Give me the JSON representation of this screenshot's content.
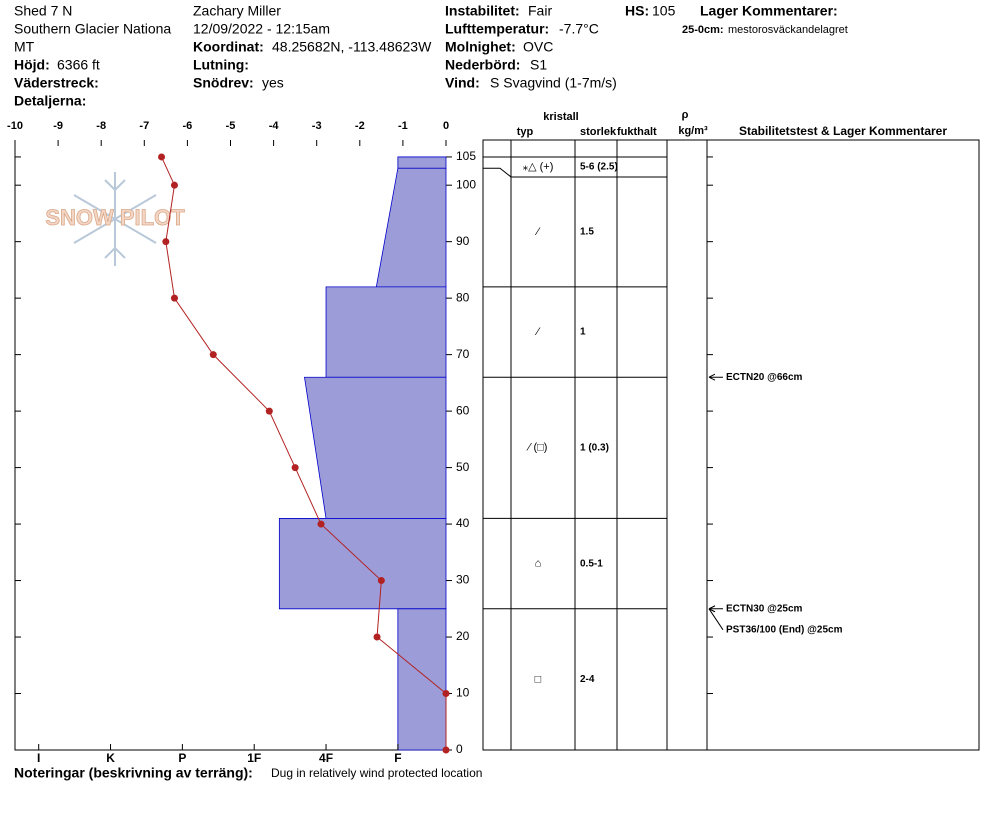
{
  "header": {
    "location": [
      "Shed 7 N",
      "Southern Glacier Nationa",
      "MT"
    ],
    "observer": "Zachary Miller",
    "datetime": "12/09/2022 - 12:15am",
    "fields": [
      {
        "label": "Höjd:",
        "value": "6366 ft"
      },
      {
        "label": "Väderstreck:"
      },
      {
        "label": "Detaljerna:"
      },
      {
        "label": "Koordinat:",
        "value": "48.25682N, -113.48623W"
      },
      {
        "label": "Lutning:"
      },
      {
        "label": "Snödrev:",
        "value": "yes"
      },
      {
        "label": "Instabilitet:",
        "value": "Fair"
      },
      {
        "label": "Lufttemperatur:",
        "value": "-7.7°C"
      },
      {
        "label": "Molnighet:",
        "value": "OVC"
      },
      {
        "label": "Nederbörd:",
        "value": "S1"
      },
      {
        "label": "Vind:",
        "value": "S Svagvind (1-7m/s)"
      },
      {
        "label": "HS:",
        "value": "105"
      }
    ],
    "layer_comments_title": "Lager Kommentarer:",
    "layer_comments": [
      {
        "label": "25-0cm:",
        "text": "mestorosväckandelagret"
      }
    ]
  },
  "chart_data": {
    "type": "snow-profile",
    "logo": "SNOW PILOT",
    "xlim": [
      -10,
      0
    ],
    "xticks": [
      -10,
      -9,
      -8,
      -7,
      -6,
      -5,
      -4,
      -3,
      -2,
      -1,
      0
    ],
    "ylim": [
      0,
      108
    ],
    "yticks": [
      0,
      10,
      20,
      30,
      40,
      50,
      60,
      70,
      80,
      90,
      100,
      105
    ],
    "hardness_lim": [
      0.33,
      6.33
    ],
    "hardness_ticks": [
      {
        "value": 6,
        "label": "I"
      },
      {
        "value": 5,
        "label": "K"
      },
      {
        "value": 4,
        "label": "P"
      },
      {
        "value": 3,
        "label": "1F"
      },
      {
        "value": 2,
        "label": "4F"
      },
      {
        "value": 1,
        "label": "F"
      }
    ],
    "temperature": {
      "color": "#b22222",
      "heights": [
        105,
        100,
        90,
        80,
        70,
        60,
        50,
        40,
        30,
        20,
        10,
        0
      ],
      "values": [
        -6.6,
        -6.3,
        -6.5,
        -6.3,
        -5.4,
        -4.1,
        -3.5,
        -2.9,
        -1.5,
        -1.6,
        0,
        0
      ]
    },
    "hardness_color": "#9c9cd8",
    "table_headers": {
      "crystal": "kristall",
      "type": "typ",
      "size": "storlek",
      "moisture": "fukthalt",
      "rho": "ρ",
      "density": "kg/m³",
      "comments": "Stabilitetstest & Lager Kommentarer"
    },
    "layers": [
      {
        "top": 105,
        "bottom": 103,
        "hardness_top": 1,
        "hardness_bottom": 1,
        "grain": "⁎△ (+)",
        "size": "5-6 (2.5)"
      },
      {
        "top": 103,
        "bottom": 82,
        "hardness_top": 1,
        "hardness_bottom": 1.3,
        "grain": "⁄",
        "size": "1.5"
      },
      {
        "top": 82,
        "bottom": 66,
        "hardness_top": 2,
        "hardness_bottom": 2,
        "grain": "⁄",
        "size": "1"
      },
      {
        "top": 66,
        "bottom": 41,
        "hardness_top": 2.3,
        "hardness_bottom": 2,
        "grain": "⁄ (□)",
        "size": "1 (0.3)"
      },
      {
        "top": 41,
        "bottom": 25,
        "hardness_top": 2.65,
        "hardness_bottom": 2.65,
        "grain": "⌂",
        "size": "0.5-1"
      },
      {
        "top": 25,
        "bottom": 0,
        "hardness_top": 1,
        "hardness_bottom": 1,
        "grain": "□",
        "size": "2-4"
      }
    ],
    "tests": [
      {
        "text": "ECTN20 @66cm",
        "depth": 66
      },
      {
        "text": "ECTN30 @25cm",
        "depth": 25
      },
      {
        "text": "PST36/100 (End) @25cm",
        "depth": 25
      }
    ]
  },
  "footer": {
    "label": "Noteringar (beskrivning av terräng):",
    "text": "Dug in relatively wind protected location"
  }
}
